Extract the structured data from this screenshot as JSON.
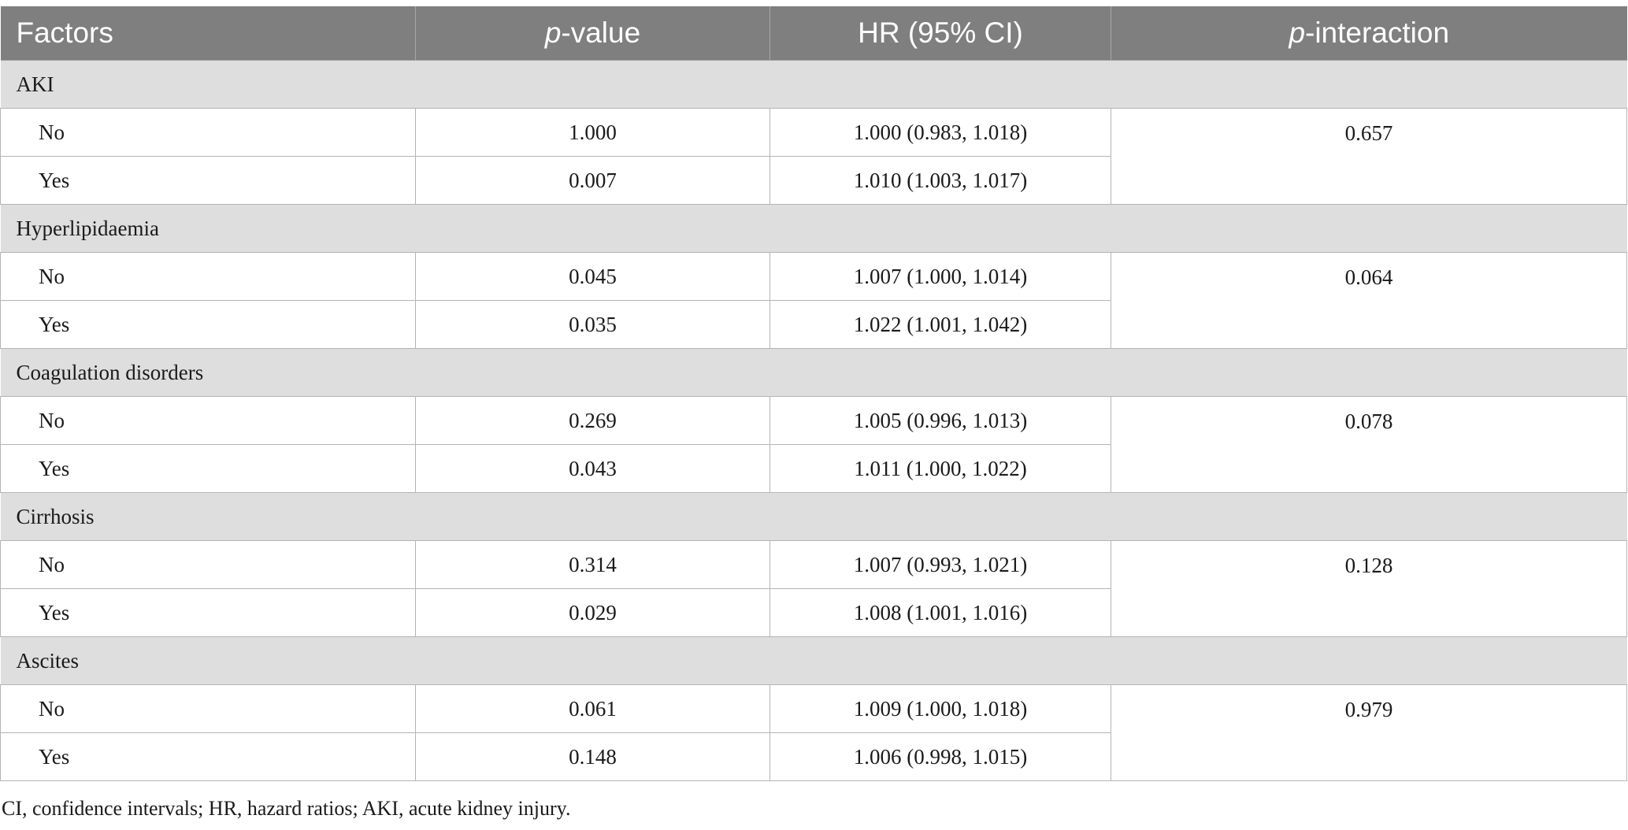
{
  "table": {
    "headers": {
      "factors": "Factors",
      "p_value_prefix": "p",
      "p_value_suffix": "-value",
      "hr": "HR (95% CI)",
      "p_interaction_prefix": "p",
      "p_interaction_suffix": "-interaction"
    },
    "groups": [
      {
        "name": "AKI",
        "p_interaction": "0.657",
        "rows": [
          {
            "label": "No",
            "p_value": "1.000",
            "hr": "1.000 (0.983, 1.018)"
          },
          {
            "label": "Yes",
            "p_value": "0.007",
            "hr": "1.010 (1.003, 1.017)"
          }
        ]
      },
      {
        "name": "Hyperlipidaemia",
        "p_interaction": "0.064",
        "rows": [
          {
            "label": "No",
            "p_value": "0.045",
            "hr": "1.007 (1.000, 1.014)"
          },
          {
            "label": "Yes",
            "p_value": "0.035",
            "hr": "1.022 (1.001, 1.042)"
          }
        ]
      },
      {
        "name": "Coagulation disorders",
        "p_interaction": "0.078",
        "rows": [
          {
            "label": "No",
            "p_value": "0.269",
            "hr": "1.005 (0.996, 1.013)"
          },
          {
            "label": "Yes",
            "p_value": "0.043",
            "hr": "1.011 (1.000, 1.022)"
          }
        ]
      },
      {
        "name": "Cirrhosis",
        "p_interaction": "0.128",
        "rows": [
          {
            "label": "No",
            "p_value": "0.314",
            "hr": "1.007 (0.993, 1.021)"
          },
          {
            "label": "Yes",
            "p_value": "0.029",
            "hr": "1.008 (1.001, 1.016)"
          }
        ]
      },
      {
        "name": "Ascites",
        "p_interaction": "0.979",
        "rows": [
          {
            "label": "No",
            "p_value": "0.061",
            "hr": "1.009 (1.000, 1.018)"
          },
          {
            "label": "Yes",
            "p_value": "0.148",
            "hr": "1.006 (0.998, 1.015)"
          }
        ]
      }
    ]
  },
  "footnote": "CI, confidence intervals; HR, hazard ratios; AKI, acute kidney injury.",
  "colors": {
    "header_bg": "#7f7f7f",
    "group_bg": "#dedede",
    "border": "#b5b5b5"
  }
}
